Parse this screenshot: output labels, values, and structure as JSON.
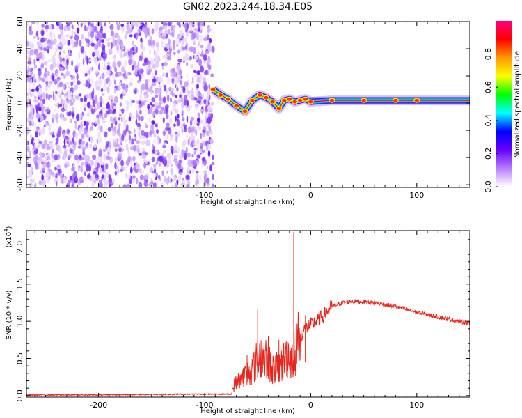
{
  "title": "GN02.2023.244.18.34.E05",
  "chart_data": [
    {
      "type": "heatmap",
      "panel": "spectrogram",
      "xlabel": "Height of straight line (km)",
      "ylabel": "Frequency (Hz)",
      "xlim": [
        -268,
        150
      ],
      "ylim": [
        -62,
        60
      ],
      "xticks": [
        -200,
        -100,
        0,
        100
      ],
      "yticks": [
        60,
        40,
        20,
        0,
        -20,
        -40,
        -60
      ],
      "noise_region_x": [
        -268,
        -92
      ],
      "signal_line": {
        "frequency_hz": 2,
        "x": [
          -92,
          -85,
          -78,
          -70,
          -62,
          -55,
          -48,
          -42,
          -36,
          -30,
          -25,
          -20,
          -15,
          -10,
          -5,
          0,
          20,
          50,
          80,
          100,
          150
        ],
        "y": [
          10,
          6,
          3,
          -2,
          -6,
          2,
          6,
          4,
          1,
          -4,
          2,
          3,
          1,
          2,
          3,
          1,
          2,
          2,
          2,
          2,
          2
        ]
      },
      "colorbar": {
        "label": "Normalized spectral amplitude",
        "ticks": [
          "0.0",
          "0.2",
          "0.4",
          "0.6",
          "0.8"
        ],
        "range": [
          0,
          1
        ],
        "colors": [
          "#ffffff",
          "#b57dff",
          "#6600ff",
          "#0000ff",
          "#00ffff",
          "#00ff00",
          "#ffff00",
          "#ff9900",
          "#ff0000",
          "#ff007f"
        ]
      }
    },
    {
      "type": "line",
      "panel": "snr",
      "xlabel": "Height of straight line (km)",
      "ylabel": "SNR (10 * v/v)",
      "scale_label": "(x10",
      "scale_exponent": "4",
      "xlim": [
        -268,
        150
      ],
      "ylim": [
        -0.02,
        2.22
      ],
      "xticks": [
        -200,
        -100,
        0,
        100
      ],
      "yticks": [
        "0.0",
        "0.5",
        "1.0",
        "1.5",
        "2.0"
      ],
      "color": "#e8261d",
      "anchors": {
        "x": [
          -268,
          -200,
          -120,
          -75,
          -72,
          -65,
          -55,
          -48,
          -40,
          -35,
          -28,
          -22,
          -18,
          -15,
          -10,
          -5,
          0,
          10,
          20,
          30,
          40,
          60,
          80,
          100,
          120,
          140,
          150
        ],
        "y": [
          0.01,
          0.01,
          0.02,
          0.02,
          0.15,
          0.25,
          0.35,
          0.55,
          0.45,
          0.35,
          0.4,
          0.55,
          0.5,
          0.6,
          0.8,
          0.9,
          0.95,
          1.05,
          1.2,
          1.25,
          1.27,
          1.25,
          1.2,
          1.12,
          1.06,
          1.0,
          0.97
        ]
      },
      "spikes": [
        {
          "x": -60,
          "y": 0.55
        },
        {
          "x": -50,
          "y": 1.17
        },
        {
          "x": -40,
          "y": 0.8
        },
        {
          "x": -30,
          "y": 0.75
        },
        {
          "x": -22,
          "y": 0.72
        },
        {
          "x": -16,
          "y": 2.2
        },
        {
          "x": -5,
          "y": 1.08
        }
      ]
    }
  ]
}
